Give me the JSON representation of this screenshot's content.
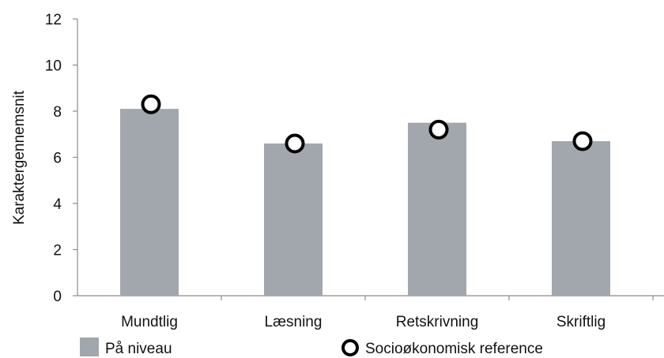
{
  "chart_data": {
    "type": "bar",
    "ylabel": "Karaktergennemsnit",
    "ylim": [
      0,
      12
    ],
    "yticks": [
      0,
      2,
      4,
      6,
      8,
      10,
      12
    ],
    "categories": [
      "Mundtlig",
      "Læsning",
      "Retskrivning",
      "Skriftlig"
    ],
    "series": [
      {
        "name": "På niveau",
        "type": "bar",
        "color": "#a2a7ad",
        "values": [
          8.1,
          6.6,
          7.5,
          6.7
        ]
      },
      {
        "name": "Socioøkonomisk reference",
        "type": "scatter",
        "marker": "circle-open",
        "color": "#000000",
        "values": [
          8.3,
          6.6,
          7.2,
          6.7
        ]
      }
    ],
    "grid": false,
    "legend_position": "bottom"
  }
}
